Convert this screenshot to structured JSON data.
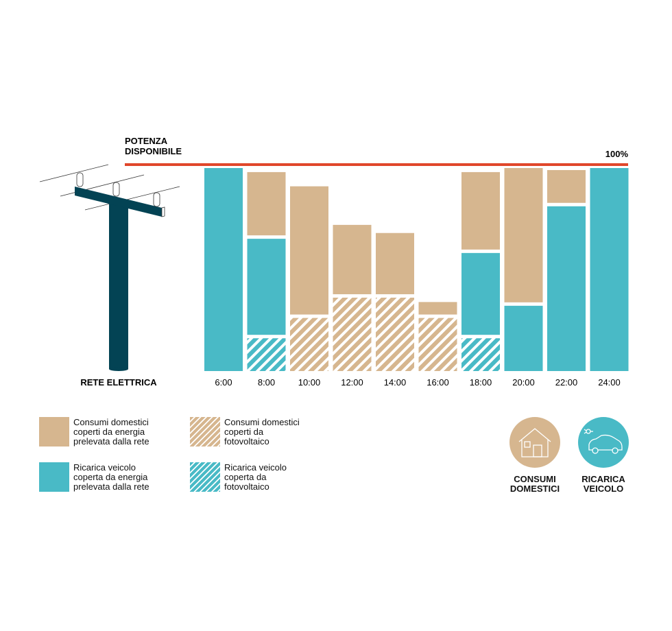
{
  "title_lines": [
    "POTENZA",
    "DISPONIBILE"
  ],
  "percent_label": "100%",
  "grid_label": "RETE ELETTRICA",
  "colors": {
    "domestic": "#d6b68f",
    "vehicle": "#49bac6",
    "limit_line": "#e0472b",
    "pole": "#034354"
  },
  "chart_data": {
    "type": "bar",
    "stacked": true,
    "categories": [
      "6:00",
      "8:00",
      "10:00",
      "12:00",
      "14:00",
      "16:00",
      "18:00",
      "20:00",
      "22:00",
      "24:00"
    ],
    "ylim": [
      0,
      100
    ],
    "limit_value": 100,
    "segments_bottom_to_top": [
      [
        {
          "kind": "vehicle_grid",
          "value": 100
        }
      ],
      [
        {
          "kind": "vehicle_pv",
          "value": 17
        },
        {
          "kind": "vehicle_grid",
          "value": 49
        },
        {
          "kind": "domestic_grid",
          "value": 32
        }
      ],
      [
        {
          "kind": "domestic_pv",
          "value": 27
        },
        {
          "kind": "domestic_grid",
          "value": 64
        }
      ],
      [
        {
          "kind": "domestic_pv",
          "value": 37
        },
        {
          "kind": "domestic_grid",
          "value": 35
        }
      ],
      [
        {
          "kind": "domestic_pv",
          "value": 37
        },
        {
          "kind": "domestic_grid",
          "value": 31
        }
      ],
      [
        {
          "kind": "domestic_pv",
          "value": 27
        },
        {
          "kind": "domestic_grid",
          "value": 7
        }
      ],
      [
        {
          "kind": "vehicle_pv",
          "value": 17
        },
        {
          "kind": "vehicle_grid",
          "value": 42
        },
        {
          "kind": "domestic_grid",
          "value": 39
        }
      ],
      [
        {
          "kind": "vehicle_grid",
          "value": 33
        },
        {
          "kind": "domestic_grid",
          "value": 67
        }
      ],
      [
        {
          "kind": "vehicle_grid",
          "value": 82
        },
        {
          "kind": "domestic_grid",
          "value": 17
        }
      ],
      [
        {
          "kind": "vehicle_grid",
          "value": 100
        }
      ]
    ]
  },
  "legend": [
    {
      "kind": "domestic_grid",
      "lines": [
        "Consumi domestici",
        "coperti da energia",
        "prelevata dalla rete"
      ]
    },
    {
      "kind": "domestic_pv",
      "lines": [
        "Consumi domestici",
        "coperti da",
        "fotovoltaico"
      ]
    },
    {
      "kind": "vehicle_grid",
      "lines": [
        "Ricarica veicolo",
        "coperta da energia",
        "prelevata dalla rete"
      ]
    },
    {
      "kind": "vehicle_pv",
      "lines": [
        "Ricarica veicolo",
        "coperta da",
        "fotovoltaico"
      ]
    }
  ],
  "icons": [
    {
      "name": "house-icon",
      "color": "domestic",
      "caption": [
        "CONSUMI",
        "DOMESTICI"
      ]
    },
    {
      "name": "car-plug-icon",
      "color": "vehicle",
      "caption": [
        "RICARICA",
        "VEICOLO"
      ]
    }
  ]
}
